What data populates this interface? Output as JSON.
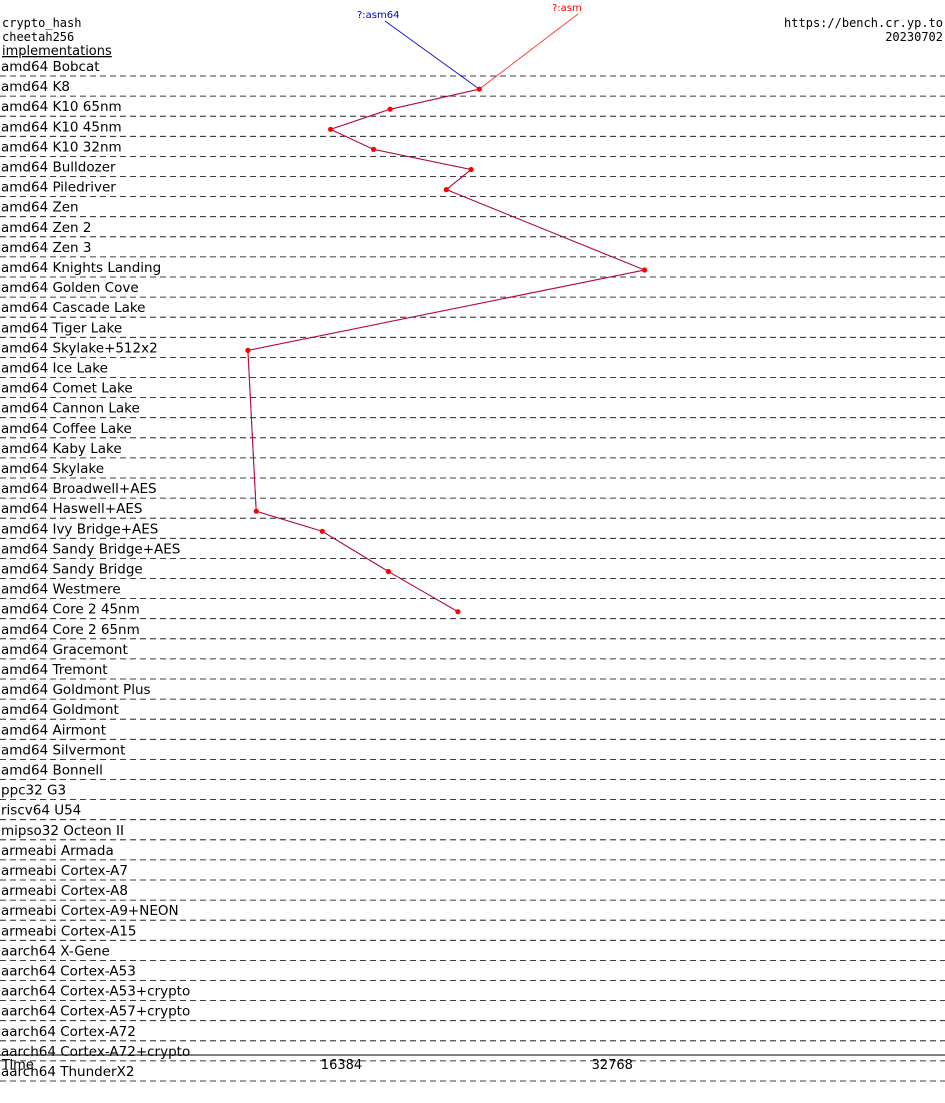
{
  "header": {
    "primitive": "crypto_hash",
    "name": "cheetah256",
    "section": "implementations",
    "url": "https://bench.cr.yp.to",
    "date": "20230702"
  },
  "legend": [
    {
      "label": "?:asm64",
      "color": "#0000cc"
    },
    {
      "label": "?:asm",
      "color": "#ff0000"
    }
  ],
  "colors": {
    "asm64": "#0000cc",
    "asm": "#ff0000",
    "overlap": "#800080",
    "grid": "#000000"
  },
  "chart_data": {
    "type": "line",
    "xlabel": "Time",
    "xticks": [
      16384,
      32768
    ],
    "xlim": [
      0,
      60000
    ],
    "note": "y axis lists one row per microarchitecture; line values are approximate cycle counts read from the x axis",
    "categories": [
      "amd64 Bobcat",
      "amd64 K8",
      "amd64 K10 65nm",
      "amd64 K10 45nm",
      "amd64 K10 32nm",
      "amd64 Bulldozer",
      "amd64 Piledriver",
      "amd64 Zen",
      "amd64 Zen 2",
      "amd64 Zen 3",
      "amd64 Knights Landing",
      "amd64 Golden Cove",
      "amd64 Cascade Lake",
      "amd64 Tiger Lake",
      "amd64 Skylake+512x2",
      "amd64 Ice Lake",
      "amd64 Comet Lake",
      "amd64 Cannon Lake",
      "amd64 Coffee Lake",
      "amd64 Kaby Lake",
      "amd64 Skylake",
      "amd64 Broadwell+AES",
      "amd64 Haswell+AES",
      "amd64 Ivy Bridge+AES",
      "amd64 Sandy Bridge+AES",
      "amd64 Sandy Bridge",
      "amd64 Westmere",
      "amd64 Core 2 45nm",
      "amd64 Core 2 65nm",
      "amd64 Gracemont",
      "amd64 Tremont",
      "amd64 Goldmont Plus",
      "amd64 Goldmont",
      "amd64 Airmont",
      "amd64 Silvermont",
      "amd64 Bonnell",
      "ppc32 G3",
      "riscv64 U54",
      "mipso32 Octeon II",
      "armeabi Armada",
      "armeabi Cortex-A7",
      "armeabi Cortex-A8",
      "armeabi Cortex-A9+NEON",
      "armeabi Cortex-A15",
      "aarch64 X-Gene",
      "aarch64 Cortex-A53",
      "aarch64 Cortex-A53+crypto",
      "aarch64 Cortex-A57+crypto",
      "aarch64 Cortex-A72",
      "aarch64 Cortex-A72+crypto",
      "aarch64 ThunderX2"
    ],
    "series": [
      {
        "name": "?:asm64",
        "color": "#0000cc",
        "points": [
          {
            "row": 1,
            "t": 29000
          },
          {
            "row": 2,
            "t": 23600
          },
          {
            "row": 3,
            "t": 20000
          },
          {
            "row": 4,
            "t": 22600
          },
          {
            "row": 5,
            "t": 28500
          },
          {
            "row": 6,
            "t": 27000
          },
          {
            "row": 10,
            "t": 39000
          },
          {
            "row": 14,
            "t": 15000
          },
          {
            "row": 22,
            "t": 15500
          },
          {
            "row": 23,
            "t": 19500
          },
          {
            "row": 25,
            "t": 23500
          },
          {
            "row": 27,
            "t": 27700
          }
        ]
      },
      {
        "name": "?:asm",
        "color": "#ff0000",
        "points": [
          {
            "row": 1,
            "t": 29000
          },
          {
            "row": 2,
            "t": 23600
          },
          {
            "row": 3,
            "t": 20000
          },
          {
            "row": 4,
            "t": 22600
          },
          {
            "row": 5,
            "t": 28500
          },
          {
            "row": 6,
            "t": 27000
          },
          {
            "row": 10,
            "t": 39000
          },
          {
            "row": 14,
            "t": 15000
          },
          {
            "row": 22,
            "t": 15500
          },
          {
            "row": 23,
            "t": 19500
          },
          {
            "row": 25,
            "t": 23500
          },
          {
            "row": 27,
            "t": 27700
          }
        ]
      }
    ]
  }
}
